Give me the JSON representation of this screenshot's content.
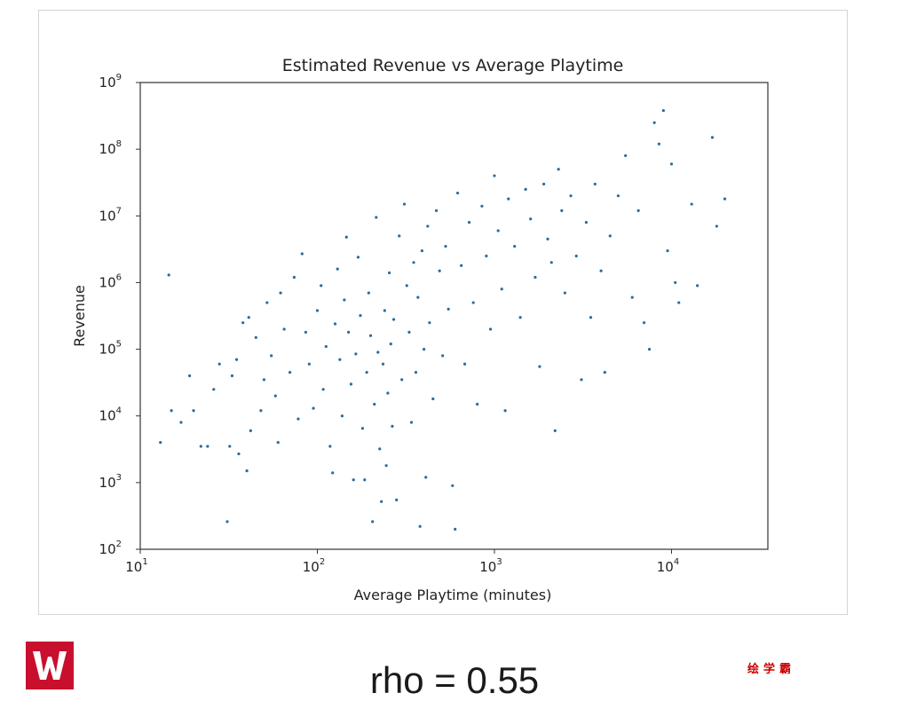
{
  "chart_data": {
    "type": "scatter",
    "title": "Estimated Revenue vs Average Playtime",
    "xlabel": "Average Playtime (minutes)",
    "ylabel": "Revenue",
    "xscale": "log",
    "yscale": "log",
    "xlim": [
      10,
      35000
    ],
    "ylim": [
      100,
      1000000000
    ],
    "x_ticks": [
      {
        "base": "10",
        "exp": "1"
      },
      {
        "base": "10",
        "exp": "2"
      },
      {
        "base": "10",
        "exp": "3"
      },
      {
        "base": "10",
        "exp": "4"
      }
    ],
    "y_ticks": [
      {
        "base": "10",
        "exp": "2"
      },
      {
        "base": "10",
        "exp": "3"
      },
      {
        "base": "10",
        "exp": "4"
      },
      {
        "base": "10",
        "exp": "5"
      },
      {
        "base": "10",
        "exp": "6"
      },
      {
        "base": "10",
        "exp": "7"
      },
      {
        "base": "10",
        "exp": "8"
      },
      {
        "base": "10",
        "exp": "9"
      }
    ],
    "grid": false,
    "legend": "none",
    "marker_color": "#2c6b9a",
    "series": [
      {
        "points": [
          [
            13,
            4000
          ],
          [
            14.5,
            1300000
          ],
          [
            15,
            12000
          ],
          [
            17,
            8000
          ],
          [
            19,
            40000
          ],
          [
            20,
            12000
          ],
          [
            22,
            3500
          ],
          [
            24,
            3500
          ],
          [
            26,
            25000
          ],
          [
            28,
            60000
          ],
          [
            31,
            260
          ],
          [
            32,
            3500
          ],
          [
            33,
            40000
          ],
          [
            35,
            70000
          ],
          [
            36,
            2700
          ],
          [
            38,
            250000
          ],
          [
            40,
            1500
          ],
          [
            41,
            300000
          ],
          [
            42,
            6000
          ],
          [
            45,
            150000
          ],
          [
            48,
            12000
          ],
          [
            50,
            35000
          ],
          [
            52,
            500000
          ],
          [
            55,
            80000
          ],
          [
            58,
            20000
          ],
          [
            60,
            4000
          ],
          [
            62,
            700000
          ],
          [
            65,
            200000
          ],
          [
            70,
            45000
          ],
          [
            74,
            1200000
          ],
          [
            78,
            9000
          ],
          [
            82,
            2700000
          ],
          [
            86,
            180000
          ],
          [
            90,
            60000
          ],
          [
            95,
            13000
          ],
          [
            100,
            380000
          ],
          [
            105,
            900000
          ],
          [
            108,
            25000
          ],
          [
            112,
            110000
          ],
          [
            118,
            3500
          ],
          [
            122,
            1400
          ],
          [
            126,
            240000
          ],
          [
            130,
            1600000
          ],
          [
            134,
            70000
          ],
          [
            138,
            10000
          ],
          [
            142,
            550000
          ],
          [
            146,
            4800000
          ],
          [
            150,
            180000
          ],
          [
            155,
            30000
          ],
          [
            160,
            1100
          ],
          [
            165,
            85000
          ],
          [
            170,
            2400000
          ],
          [
            175,
            320000
          ],
          [
            180,
            6500
          ],
          [
            185,
            1100
          ],
          [
            190,
            45000
          ],
          [
            195,
            700000
          ],
          [
            200,
            160000
          ],
          [
            205,
            260
          ],
          [
            210,
            15000
          ],
          [
            215,
            9500000
          ],
          [
            220,
            90000
          ],
          [
            225,
            3200
          ],
          [
            230,
            520
          ],
          [
            235,
            60000
          ],
          [
            240,
            380000
          ],
          [
            245,
            1800
          ],
          [
            250,
            22000
          ],
          [
            255,
            1400000
          ],
          [
            260,
            120000
          ],
          [
            265,
            7000
          ],
          [
            270,
            280000
          ],
          [
            280,
            550
          ],
          [
            290,
            5000000
          ],
          [
            300,
            35000
          ],
          [
            310,
            15000000
          ],
          [
            320,
            900000
          ],
          [
            330,
            180000
          ],
          [
            340,
            8000
          ],
          [
            350,
            2000000
          ],
          [
            360,
            45000
          ],
          [
            370,
            600000
          ],
          [
            380,
            220
          ],
          [
            390,
            3000000
          ],
          [
            400,
            100000
          ],
          [
            410,
            1200
          ],
          [
            420,
            7000000
          ],
          [
            430,
            250000
          ],
          [
            450,
            18000
          ],
          [
            470,
            12000000
          ],
          [
            490,
            1500000
          ],
          [
            510,
            80000
          ],
          [
            530,
            3500000
          ],
          [
            550,
            400000
          ],
          [
            580,
            900
          ],
          [
            600,
            200
          ],
          [
            620,
            22000000
          ],
          [
            650,
            1800000
          ],
          [
            680,
            60000
          ],
          [
            720,
            8000000
          ],
          [
            760,
            500000
          ],
          [
            800,
            15000
          ],
          [
            850,
            14000000
          ],
          [
            900,
            2500000
          ],
          [
            950,
            200000
          ],
          [
            1000,
            40000000
          ],
          [
            1050,
            6000000
          ],
          [
            1100,
            800000
          ],
          [
            1150,
            12000
          ],
          [
            1200,
            18000000
          ],
          [
            1300,
            3500000
          ],
          [
            1400,
            300000
          ],
          [
            1500,
            25000000
          ],
          [
            1600,
            9000000
          ],
          [
            1700,
            1200000
          ],
          [
            1800,
            55000
          ],
          [
            1900,
            30000000
          ],
          [
            2000,
            4500000
          ],
          [
            2100,
            2000000
          ],
          [
            2200,
            6000
          ],
          [
            2300,
            50000000
          ],
          [
            2400,
            12000000
          ],
          [
            2500,
            700000
          ],
          [
            2700,
            20000000
          ],
          [
            2900,
            2500000
          ],
          [
            3100,
            35000
          ],
          [
            3300,
            8000000
          ],
          [
            3500,
            300000
          ],
          [
            3700,
            30000000
          ],
          [
            4000,
            1500000
          ],
          [
            4200,
            45000
          ],
          [
            4500,
            5000000
          ],
          [
            5000,
            20000000
          ],
          [
            5500,
            80000000
          ],
          [
            6000,
            600000
          ],
          [
            6500,
            12000000
          ],
          [
            7000,
            250000
          ],
          [
            7500,
            100000
          ],
          [
            8000,
            250000000
          ],
          [
            8500,
            120000000
          ],
          [
            9000,
            380000000
          ],
          [
            9500,
            3000000
          ],
          [
            10000,
            60000000
          ],
          [
            10500,
            1000000
          ],
          [
            11000,
            500000
          ],
          [
            13000,
            15000000
          ],
          [
            14000,
            900000
          ],
          [
            17000,
            150000000
          ],
          [
            18000,
            7000000
          ],
          [
            20000,
            18000000
          ]
        ]
      }
    ]
  },
  "footer": {
    "stat": "rho = 0.55",
    "brand_text": "绘学霸",
    "logo_text": "W"
  }
}
